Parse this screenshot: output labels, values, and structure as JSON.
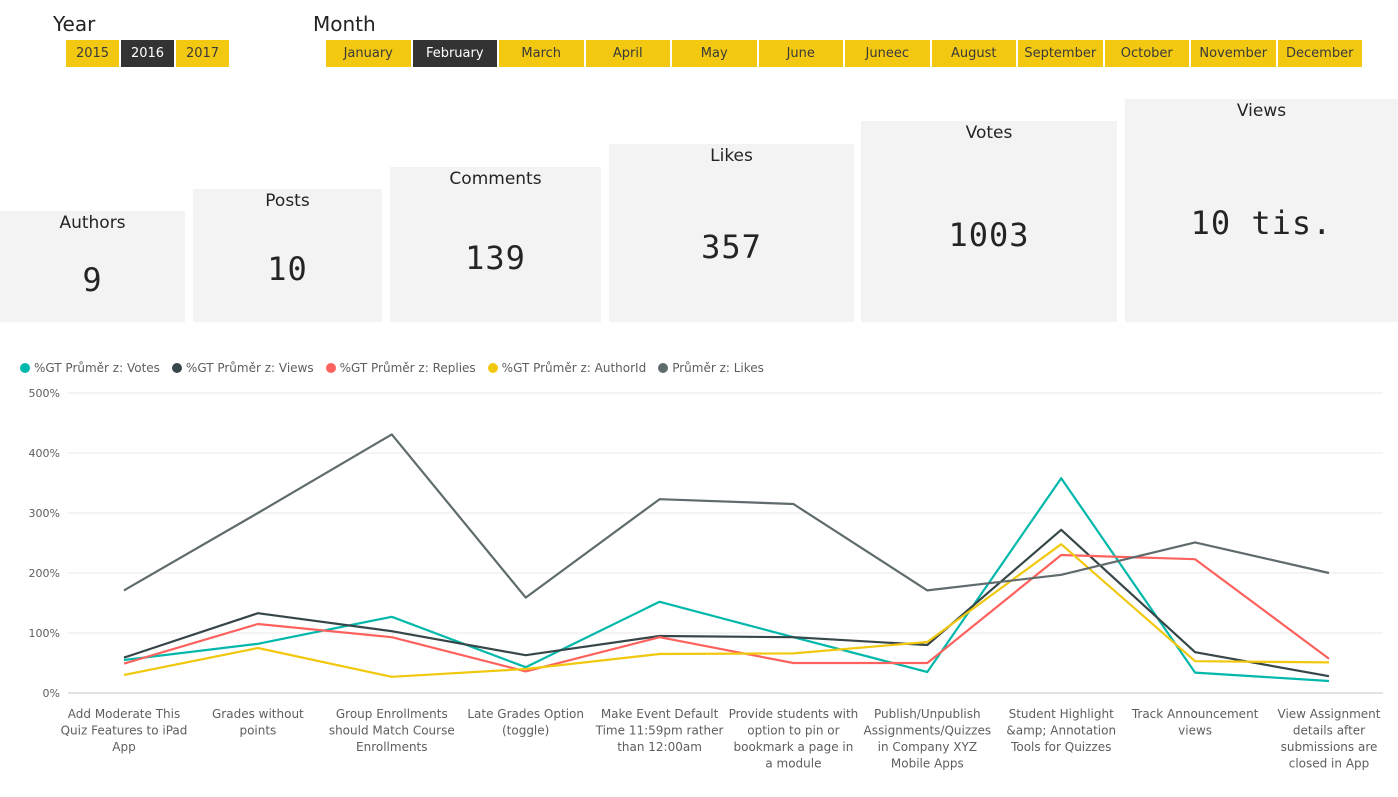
{
  "year_slicer": {
    "title": "Year",
    "options": [
      "2015",
      "2016",
      "2017"
    ],
    "selected": "2016"
  },
  "month_slicer": {
    "title": "Month",
    "options": [
      "January",
      "February",
      "March",
      "April",
      "May",
      "June",
      "Juneec",
      "August",
      "September",
      "October",
      "November",
      "December"
    ],
    "selected": "February"
  },
  "kpis": {
    "authors": {
      "label": "Authors",
      "value": "9"
    },
    "posts": {
      "label": "Posts",
      "value": "10"
    },
    "comments": {
      "label": "Comments",
      "value": "139"
    },
    "likes": {
      "label": "Likes",
      "value": "357"
    },
    "votes": {
      "label": "Votes",
      "value": "1003"
    },
    "views": {
      "label": "Views",
      "value": "10 tis."
    }
  },
  "chart_data": {
    "type": "line",
    "categories": [
      "Add Moderate This Quiz Features to iPad App",
      "Grades without points",
      "Group Enrollments should Match Course Enrollments",
      "Late Grades Option (toggle)",
      "Make Event Default Time 11:59pm rather than 12:00am",
      "Provide students with option to pin or bookmark a page in a module",
      "Publish/Unpublish Assignments/Quizzes in Company XYZ Mobile Apps",
      "Student Highlight &amp; Annotation Tools for Quizzes",
      "Track Announcement views",
      "View Assignment details after submissions are closed in App"
    ],
    "category_lines": [
      [
        "Add Moderate This",
        "Quiz Features to iPad",
        "App"
      ],
      [
        "Grades without",
        "points"
      ],
      [
        "Group Enrollments",
        "should Match Course",
        "Enrollments"
      ],
      [
        "Late Grades Option",
        "(toggle)"
      ],
      [
        "Make Event Default",
        "Time 11:59pm rather",
        "than 12:00am"
      ],
      [
        "Provide students with",
        "option to pin or",
        "bookmark a page in",
        "a module"
      ],
      [
        "Publish/Unpublish",
        "Assignments/Quizzes",
        "in Company XYZ",
        "Mobile Apps"
      ],
      [
        "Student Highlight",
        "&amp; Annotation",
        "Tools for Quizzes"
      ],
      [
        "Track Announcement",
        "views"
      ],
      [
        "View Assignment",
        "details after",
        "submissions are",
        "closed in App"
      ]
    ],
    "series": [
      {
        "name": "%GT Průměr z: Votes",
        "color": "#01b8aa",
        "values": [
          55,
          82,
          127,
          43,
          152,
          93,
          35,
          358,
          34,
          20
        ]
      },
      {
        "name": "%GT Průměr z: Views",
        "color": "#374649",
        "values": [
          59,
          133,
          103,
          63,
          95,
          93,
          80,
          272,
          68,
          28
        ]
      },
      {
        "name": "%GT Průměr z: Replies",
        "color": "#fd625e",
        "values": [
          49,
          115,
          93,
          36,
          93,
          50,
          50,
          230,
          223,
          57
        ]
      },
      {
        "name": "%GT Průměr z: AuthorId",
        "color": "#f2c80f",
        "values": [
          30,
          75,
          27,
          40,
          65,
          66,
          85,
          248,
          53,
          51
        ]
      },
      {
        "name": "Průměr z: Likes",
        "color": "#5f6b6d",
        "values": [
          171,
          300,
          431,
          159,
          323,
          315,
          171,
          197,
          251,
          200
        ]
      }
    ],
    "y_ticks": [
      "0%",
      "100%",
      "200%",
      "300%",
      "400%",
      "500%"
    ],
    "ylim": [
      0,
      500
    ],
    "grid": true,
    "legend_position": "top-left"
  }
}
